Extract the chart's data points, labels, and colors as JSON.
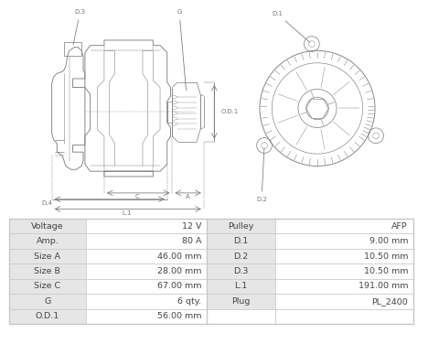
{
  "bg_color": "#ffffff",
  "table": {
    "left_col1": [
      "Voltage",
      "Amp.",
      "Size A",
      "Size B",
      "Size C",
      "G",
      "O.D.1"
    ],
    "left_col2": [
      "12 V",
      "80 A",
      "46.00 mm",
      "28.00 mm",
      "67.00 mm",
      "6 qty.",
      "56.00 mm"
    ],
    "right_col1": [
      "Pulley",
      "D.1",
      "D.2",
      "D.3",
      "L.1",
      "Plug",
      ""
    ],
    "right_col2": [
      "AFP",
      "9.00 mm",
      "10.50 mm",
      "10.50 mm",
      "191.00 mm",
      "PL_2400",
      ""
    ]
  },
  "row_colors": [
    "#e6e6e6",
    "#f5f5f5"
  ],
  "border_color": "#c8c8c8",
  "text_color": "#444444",
  "line_color": "#888888"
}
